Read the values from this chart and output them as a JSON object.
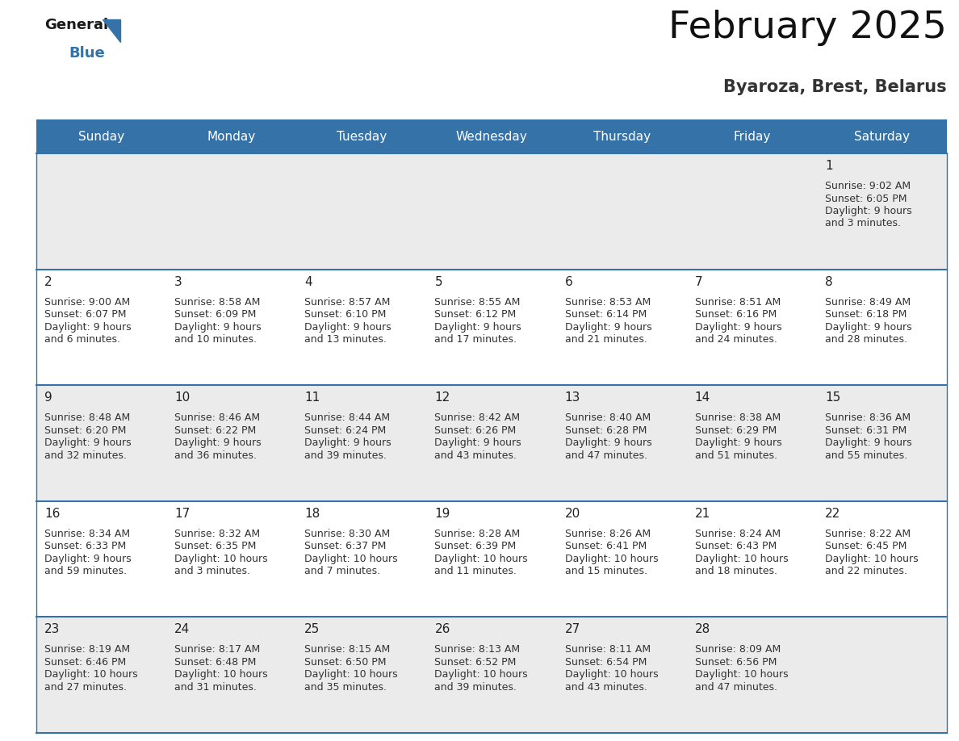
{
  "title": "February 2025",
  "subtitle": "Byaroza, Brest, Belarus",
  "header_color": "#3572A8",
  "header_text_color": "#FFFFFF",
  "day_names": [
    "Sunday",
    "Monday",
    "Tuesday",
    "Wednesday",
    "Thursday",
    "Friday",
    "Saturday"
  ],
  "bg_color": "#FFFFFF",
  "row0_bg": "#EBEBEB",
  "row_odd_bg": "#EBEBEB",
  "row_even_bg": "#FFFFFF",
  "date_color": "#222222",
  "text_color": "#333333",
  "line_color": "#3572A8",
  "days": [
    {
      "date": 1,
      "col": 6,
      "row": 0,
      "sunrise": "9:02 AM",
      "sunset": "6:05 PM",
      "daylight": "9 hours and 3 minutes."
    },
    {
      "date": 2,
      "col": 0,
      "row": 1,
      "sunrise": "9:00 AM",
      "sunset": "6:07 PM",
      "daylight": "9 hours and 6 minutes."
    },
    {
      "date": 3,
      "col": 1,
      "row": 1,
      "sunrise": "8:58 AM",
      "sunset": "6:09 PM",
      "daylight": "9 hours and 10 minutes."
    },
    {
      "date": 4,
      "col": 2,
      "row": 1,
      "sunrise": "8:57 AM",
      "sunset": "6:10 PM",
      "daylight": "9 hours and 13 minutes."
    },
    {
      "date": 5,
      "col": 3,
      "row": 1,
      "sunrise": "8:55 AM",
      "sunset": "6:12 PM",
      "daylight": "9 hours and 17 minutes."
    },
    {
      "date": 6,
      "col": 4,
      "row": 1,
      "sunrise": "8:53 AM",
      "sunset": "6:14 PM",
      "daylight": "9 hours and 21 minutes."
    },
    {
      "date": 7,
      "col": 5,
      "row": 1,
      "sunrise": "8:51 AM",
      "sunset": "6:16 PM",
      "daylight": "9 hours and 24 minutes."
    },
    {
      "date": 8,
      "col": 6,
      "row": 1,
      "sunrise": "8:49 AM",
      "sunset": "6:18 PM",
      "daylight": "9 hours and 28 minutes."
    },
    {
      "date": 9,
      "col": 0,
      "row": 2,
      "sunrise": "8:48 AM",
      "sunset": "6:20 PM",
      "daylight": "9 hours and 32 minutes."
    },
    {
      "date": 10,
      "col": 1,
      "row": 2,
      "sunrise": "8:46 AM",
      "sunset": "6:22 PM",
      "daylight": "9 hours and 36 minutes."
    },
    {
      "date": 11,
      "col": 2,
      "row": 2,
      "sunrise": "8:44 AM",
      "sunset": "6:24 PM",
      "daylight": "9 hours and 39 minutes."
    },
    {
      "date": 12,
      "col": 3,
      "row": 2,
      "sunrise": "8:42 AM",
      "sunset": "6:26 PM",
      "daylight": "9 hours and 43 minutes."
    },
    {
      "date": 13,
      "col": 4,
      "row": 2,
      "sunrise": "8:40 AM",
      "sunset": "6:28 PM",
      "daylight": "9 hours and 47 minutes."
    },
    {
      "date": 14,
      "col": 5,
      "row": 2,
      "sunrise": "8:38 AM",
      "sunset": "6:29 PM",
      "daylight": "9 hours and 51 minutes."
    },
    {
      "date": 15,
      "col": 6,
      "row": 2,
      "sunrise": "8:36 AM",
      "sunset": "6:31 PM",
      "daylight": "9 hours and 55 minutes."
    },
    {
      "date": 16,
      "col": 0,
      "row": 3,
      "sunrise": "8:34 AM",
      "sunset": "6:33 PM",
      "daylight": "9 hours and 59 minutes."
    },
    {
      "date": 17,
      "col": 1,
      "row": 3,
      "sunrise": "8:32 AM",
      "sunset": "6:35 PM",
      "daylight": "10 hours and 3 minutes."
    },
    {
      "date": 18,
      "col": 2,
      "row": 3,
      "sunrise": "8:30 AM",
      "sunset": "6:37 PM",
      "daylight": "10 hours and 7 minutes."
    },
    {
      "date": 19,
      "col": 3,
      "row": 3,
      "sunrise": "8:28 AM",
      "sunset": "6:39 PM",
      "daylight": "10 hours and 11 minutes."
    },
    {
      "date": 20,
      "col": 4,
      "row": 3,
      "sunrise": "8:26 AM",
      "sunset": "6:41 PM",
      "daylight": "10 hours and 15 minutes."
    },
    {
      "date": 21,
      "col": 5,
      "row": 3,
      "sunrise": "8:24 AM",
      "sunset": "6:43 PM",
      "daylight": "10 hours and 18 minutes."
    },
    {
      "date": 22,
      "col": 6,
      "row": 3,
      "sunrise": "8:22 AM",
      "sunset": "6:45 PM",
      "daylight": "10 hours and 22 minutes."
    },
    {
      "date": 23,
      "col": 0,
      "row": 4,
      "sunrise": "8:19 AM",
      "sunset": "6:46 PM",
      "daylight": "10 hours and 27 minutes."
    },
    {
      "date": 24,
      "col": 1,
      "row": 4,
      "sunrise": "8:17 AM",
      "sunset": "6:48 PM",
      "daylight": "10 hours and 31 minutes."
    },
    {
      "date": 25,
      "col": 2,
      "row": 4,
      "sunrise": "8:15 AM",
      "sunset": "6:50 PM",
      "daylight": "10 hours and 35 minutes."
    },
    {
      "date": 26,
      "col": 3,
      "row": 4,
      "sunrise": "8:13 AM",
      "sunset": "6:52 PM",
      "daylight": "10 hours and 39 minutes."
    },
    {
      "date": 27,
      "col": 4,
      "row": 4,
      "sunrise": "8:11 AM",
      "sunset": "6:54 PM",
      "daylight": "10 hours and 43 minutes."
    },
    {
      "date": 28,
      "col": 5,
      "row": 4,
      "sunrise": "8:09 AM",
      "sunset": "6:56 PM",
      "daylight": "10 hours and 47 minutes."
    }
  ]
}
